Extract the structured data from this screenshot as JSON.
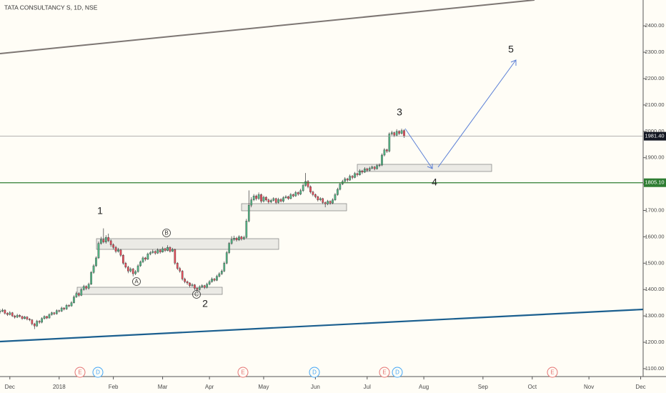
{
  "chart_data": {
    "type": "candlestick",
    "title": "TATA CONSULTANCY S, 1D, NSE",
    "up_color": "#53b987",
    "down_color": "#eb4d5c",
    "xlim": [
      0,
      261
    ],
    "xticks": [
      {
        "value": 4,
        "label": "Dec"
      },
      {
        "value": 24,
        "label": "2018"
      },
      {
        "value": 46,
        "label": "Feb"
      },
      {
        "value": 66,
        "label": "Mar"
      },
      {
        "value": 85,
        "label": "Apr"
      },
      {
        "value": 107,
        "label": "May"
      },
      {
        "value": 128,
        "label": "Jun"
      },
      {
        "value": 149,
        "label": "Jul"
      },
      {
        "value": 172,
        "label": "Aug"
      },
      {
        "value": 196,
        "label": "Sep"
      },
      {
        "value": 216,
        "label": "Oct"
      },
      {
        "value": 239,
        "label": "Nov"
      },
      {
        "value": 260,
        "label": "Dec"
      }
    ],
    "ylim": [
      1070,
      2498
    ],
    "yticks": [
      {
        "value": 1100,
        "label": "1100.00"
      },
      {
        "value": 1200,
        "label": "1200.00"
      },
      {
        "value": 1300,
        "label": "1300.00"
      },
      {
        "value": 1400,
        "label": "1400.00"
      },
      {
        "value": 1500,
        "label": "1500.00"
      },
      {
        "value": 1600,
        "label": "1600.00"
      },
      {
        "value": 1700,
        "label": "1700.00"
      },
      {
        "value": 1800,
        "label": "1800.00"
      },
      {
        "value": 1900,
        "label": "1900.00"
      },
      {
        "value": 2000,
        "label": "2000.00"
      },
      {
        "value": 2100,
        "label": "2100.00"
      },
      {
        "value": 2200,
        "label": "2200.00"
      },
      {
        "value": 2300,
        "label": "2300.00"
      },
      {
        "value": 2400,
        "label": "2400.00"
      }
    ],
    "price_lines": [
      {
        "value": 1981.4,
        "label": "1981.40",
        "color": "#9a9a9a",
        "label_color": "#131722"
      },
      {
        "value": 1805.1,
        "label": "1805.10",
        "color": "#2e7d32",
        "label_color": "#2e7d32"
      }
    ],
    "wave_labels": [
      "1",
      "2",
      "3",
      "4",
      "5"
    ],
    "sub_labels": [
      "A",
      "B",
      "C"
    ],
    "events": [
      "E",
      "D",
      "E",
      "D",
      "E",
      "D",
      "E"
    ],
    "candles": [
      [
        1315,
        1325,
        1308,
        1318
      ],
      [
        1318,
        1328,
        1314,
        1322
      ],
      [
        1322,
        1325,
        1305,
        1310
      ],
      [
        1310,
        1314,
        1300,
        1305
      ],
      [
        1305,
        1318,
        1302,
        1312
      ],
      [
        1312,
        1315,
        1296,
        1300
      ],
      [
        1300,
        1304,
        1290,
        1295
      ],
      [
        1295,
        1308,
        1292,
        1302
      ],
      [
        1302,
        1306,
        1294,
        1298
      ],
      [
        1298,
        1301,
        1285,
        1290
      ],
      [
        1290,
        1300,
        1287,
        1296
      ],
      [
        1296,
        1299,
        1283,
        1288
      ],
      [
        1288,
        1292,
        1280,
        1285
      ],
      [
        1285,
        1288,
        1264,
        1270
      ],
      [
        1270,
        1274,
        1250,
        1262
      ],
      [
        1262,
        1285,
        1258,
        1280
      ],
      [
        1280,
        1284,
        1270,
        1276
      ],
      [
        1276,
        1295,
        1272,
        1290
      ],
      [
        1290,
        1302,
        1286,
        1298
      ],
      [
        1298,
        1300,
        1288,
        1292
      ],
      [
        1292,
        1310,
        1290,
        1305
      ],
      [
        1305,
        1316,
        1301,
        1312
      ],
      [
        1312,
        1315,
        1303,
        1308
      ],
      [
        1308,
        1325,
        1305,
        1320
      ],
      [
        1320,
        1324,
        1313,
        1318
      ],
      [
        1318,
        1335,
        1315,
        1330
      ],
      [
        1330,
        1333,
        1321,
        1326
      ],
      [
        1326,
        1345,
        1323,
        1340
      ],
      [
        1340,
        1344,
        1333,
        1338
      ],
      [
        1338,
        1356,
        1335,
        1350
      ],
      [
        1350,
        1378,
        1347,
        1372
      ],
      [
        1372,
        1392,
        1368,
        1385
      ],
      [
        1385,
        1390,
        1372,
        1378
      ],
      [
        1378,
        1406,
        1375,
        1400
      ],
      [
        1400,
        1418,
        1396,
        1412
      ],
      [
        1412,
        1416,
        1398,
        1405
      ],
      [
        1405,
        1426,
        1400,
        1420
      ],
      [
        1420,
        1470,
        1418,
        1465
      ],
      [
        1465,
        1496,
        1460,
        1490
      ],
      [
        1490,
        1526,
        1486,
        1520
      ],
      [
        1520,
        1582,
        1516,
        1575
      ],
      [
        1575,
        1600,
        1570,
        1590
      ],
      [
        1590,
        1632,
        1575,
        1580
      ],
      [
        1580,
        1606,
        1574,
        1598
      ],
      [
        1598,
        1612,
        1580,
        1585
      ],
      [
        1585,
        1590,
        1562,
        1570
      ],
      [
        1570,
        1575,
        1552,
        1560
      ],
      [
        1560,
        1566,
        1538,
        1545
      ],
      [
        1545,
        1558,
        1540,
        1550
      ],
      [
        1550,
        1554,
        1524,
        1530
      ],
      [
        1530,
        1534,
        1494,
        1500
      ],
      [
        1500,
        1505,
        1480,
        1485
      ],
      [
        1485,
        1490,
        1462,
        1470
      ],
      [
        1470,
        1484,
        1465,
        1478
      ],
      [
        1478,
        1482,
        1450,
        1460
      ],
      [
        1460,
        1474,
        1455,
        1468
      ],
      [
        1468,
        1496,
        1464,
        1490
      ],
      [
        1490,
        1510,
        1486,
        1505
      ],
      [
        1505,
        1526,
        1500,
        1520
      ],
      [
        1520,
        1524,
        1508,
        1515
      ],
      [
        1515,
        1540,
        1512,
        1535
      ],
      [
        1535,
        1546,
        1530,
        1540
      ],
      [
        1540,
        1552,
        1536,
        1545
      ],
      [
        1545,
        1549,
        1532,
        1538
      ],
      [
        1538,
        1556,
        1535,
        1550
      ],
      [
        1550,
        1554,
        1536,
        1542
      ],
      [
        1542,
        1562,
        1540,
        1555
      ],
      [
        1555,
        1558,
        1542,
        1548
      ],
      [
        1548,
        1568,
        1545,
        1560
      ],
      [
        1560,
        1564,
        1540,
        1545
      ],
      [
        1545,
        1558,
        1542,
        1552
      ],
      [
        1552,
        1555,
        1494,
        1500
      ],
      [
        1500,
        1504,
        1474,
        1480
      ],
      [
        1480,
        1486,
        1464,
        1470
      ],
      [
        1470,
        1474,
        1434,
        1440
      ],
      [
        1440,
        1445,
        1424,
        1430
      ],
      [
        1430,
        1434,
        1418,
        1425
      ],
      [
        1425,
        1428,
        1408,
        1415
      ],
      [
        1415,
        1424,
        1410,
        1418
      ],
      [
        1418,
        1421,
        1398,
        1405
      ],
      [
        1405,
        1408,
        1392,
        1400
      ],
      [
        1400,
        1416,
        1396,
        1410
      ],
      [
        1410,
        1420,
        1406,
        1415
      ],
      [
        1415,
        1418,
        1402,
        1408
      ],
      [
        1408,
        1426,
        1404,
        1420
      ],
      [
        1420,
        1436,
        1416,
        1430
      ],
      [
        1430,
        1446,
        1426,
        1440
      ],
      [
        1440,
        1444,
        1430,
        1435
      ],
      [
        1435,
        1456,
        1432,
        1450
      ],
      [
        1450,
        1466,
        1446,
        1460
      ],
      [
        1460,
        1476,
        1455,
        1470
      ],
      [
        1470,
        1506,
        1466,
        1500
      ],
      [
        1500,
        1546,
        1496,
        1540
      ],
      [
        1540,
        1580,
        1535,
        1575
      ],
      [
        1575,
        1602,
        1570,
        1590
      ],
      [
        1590,
        1604,
        1584,
        1595
      ],
      [
        1595,
        1600,
        1582,
        1588
      ],
      [
        1588,
        1606,
        1584,
        1600
      ],
      [
        1600,
        1604,
        1586,
        1592
      ],
      [
        1592,
        1604,
        1588,
        1598
      ],
      [
        1598,
        1668,
        1594,
        1660
      ],
      [
        1660,
        1776,
        1655,
        1720
      ],
      [
        1720,
        1750,
        1712,
        1740
      ],
      [
        1740,
        1762,
        1735,
        1755
      ],
      [
        1755,
        1760,
        1738,
        1745
      ],
      [
        1745,
        1768,
        1740,
        1760
      ],
      [
        1760,
        1764,
        1728,
        1735
      ],
      [
        1735,
        1756,
        1730,
        1750
      ],
      [
        1750,
        1754,
        1734,
        1740
      ],
      [
        1740,
        1745,
        1726,
        1732
      ],
      [
        1732,
        1744,
        1728,
        1738
      ],
      [
        1738,
        1750,
        1734,
        1745
      ],
      [
        1745,
        1748,
        1724,
        1730
      ],
      [
        1730,
        1748,
        1726,
        1742
      ],
      [
        1742,
        1746,
        1730,
        1735
      ],
      [
        1735,
        1754,
        1730,
        1748
      ],
      [
        1748,
        1758,
        1744,
        1752
      ],
      [
        1752,
        1756,
        1740,
        1745
      ],
      [
        1745,
        1766,
        1742,
        1760
      ],
      [
        1760,
        1764,
        1750,
        1755
      ],
      [
        1755,
        1774,
        1752,
        1768
      ],
      [
        1768,
        1772,
        1756,
        1762
      ],
      [
        1762,
        1782,
        1758,
        1775
      ],
      [
        1775,
        1802,
        1770,
        1795
      ],
      [
        1795,
        1842,
        1790,
        1810
      ],
      [
        1810,
        1815,
        1784,
        1790
      ],
      [
        1790,
        1795,
        1764,
        1770
      ],
      [
        1770,
        1775,
        1754,
        1760
      ],
      [
        1760,
        1764,
        1746,
        1752
      ],
      [
        1752,
        1756,
        1734,
        1740
      ],
      [
        1740,
        1750,
        1735,
        1745
      ],
      [
        1745,
        1748,
        1724,
        1730
      ],
      [
        1730,
        1734,
        1712,
        1725
      ],
      [
        1725,
        1740,
        1720,
        1735
      ],
      [
        1735,
        1738,
        1722,
        1728
      ],
      [
        1728,
        1746,
        1724,
        1740
      ],
      [
        1740,
        1766,
        1736,
        1760
      ],
      [
        1760,
        1786,
        1756,
        1780
      ],
      [
        1780,
        1806,
        1776,
        1800
      ],
      [
        1800,
        1816,
        1796,
        1810
      ],
      [
        1810,
        1826,
        1806,
        1820
      ],
      [
        1820,
        1824,
        1808,
        1815
      ],
      [
        1815,
        1836,
        1812,
        1830
      ],
      [
        1830,
        1834,
        1818,
        1825
      ],
      [
        1825,
        1846,
        1822,
        1840
      ],
      [
        1840,
        1844,
        1828,
        1835
      ],
      [
        1835,
        1856,
        1832,
        1850
      ],
      [
        1850,
        1854,
        1838,
        1845
      ],
      [
        1845,
        1864,
        1842,
        1858
      ],
      [
        1858,
        1862,
        1846,
        1852
      ],
      [
        1852,
        1866,
        1848,
        1860
      ],
      [
        1860,
        1870,
        1856,
        1865
      ],
      [
        1865,
        1868,
        1852,
        1858
      ],
      [
        1858,
        1876,
        1855,
        1870
      ],
      [
        1870,
        1878,
        1864,
        1872
      ],
      [
        1872,
        1916,
        1868,
        1910
      ],
      [
        1910,
        1936,
        1905,
        1930
      ],
      [
        1930,
        1934,
        1918,
        1925
      ],
      [
        1925,
        1996,
        1920,
        1990
      ],
      [
        1990,
        2002,
        1984,
        1995
      ],
      [
        1995,
        1999,
        1978,
        1985
      ],
      [
        1985,
        2008,
        1980,
        2000
      ],
      [
        2000,
        2004,
        1986,
        1992
      ],
      [
        1992,
        2010,
        1988,
        2003
      ],
      [
        2003,
        2008,
        1975,
        1981.4
      ]
    ]
  }
}
